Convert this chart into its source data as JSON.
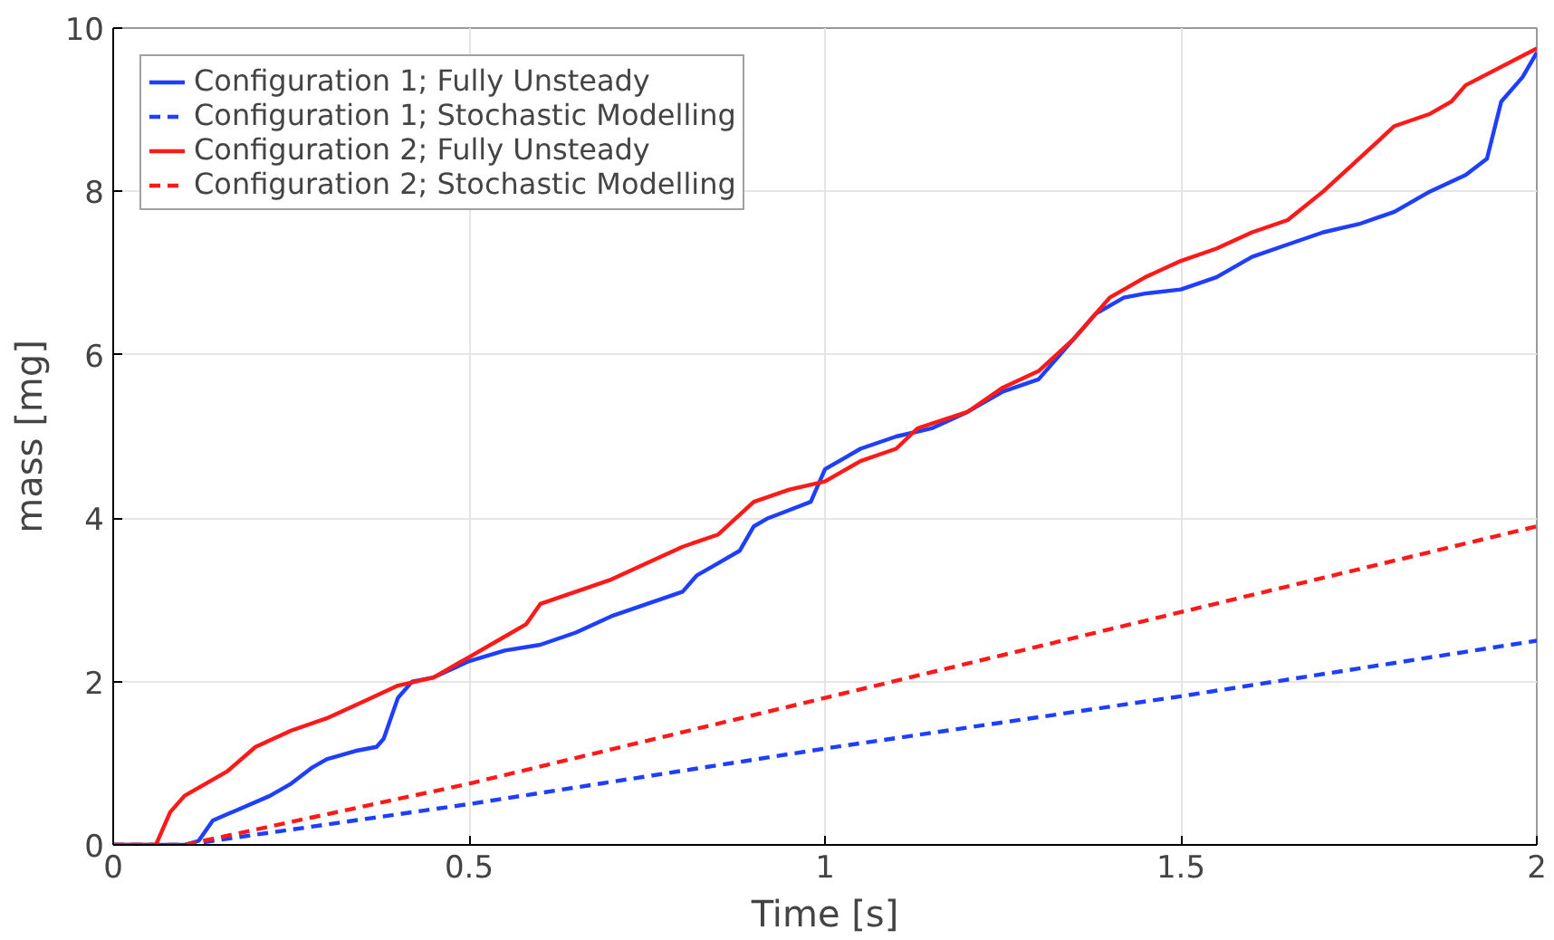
{
  "chart_data": {
    "type": "line",
    "xlabel": "Time [s]",
    "ylabel": "mass [mg]",
    "xlim": [
      0,
      2
    ],
    "ylim": [
      0,
      10
    ],
    "xticks": [
      0,
      0.5,
      1,
      1.5,
      2
    ],
    "yticks": [
      0,
      2,
      4,
      6,
      8,
      10
    ],
    "grid": true,
    "legend": "top left",
    "series": [
      {
        "name": "Configuration 1; Fully Unsteady",
        "color": "#1f3fff",
        "line_style": "solid",
        "x": [
          0,
          0.1,
          0.12,
          0.14,
          0.18,
          0.22,
          0.25,
          0.28,
          0.3,
          0.34,
          0.37,
          0.38,
          0.4,
          0.42,
          0.45,
          0.5,
          0.55,
          0.6,
          0.65,
          0.7,
          0.75,
          0.8,
          0.82,
          0.85,
          0.88,
          0.9,
          0.92,
          0.95,
          0.98,
          1.0,
          1.02,
          1.05,
          1.1,
          1.15,
          1.2,
          1.25,
          1.3,
          1.35,
          1.38,
          1.42,
          1.45,
          1.5,
          1.55,
          1.6,
          1.65,
          1.7,
          1.75,
          1.8,
          1.85,
          1.9,
          1.93,
          1.95,
          1.98,
          2.0
        ],
        "values": [
          0,
          0,
          0.05,
          0.3,
          0.45,
          0.6,
          0.75,
          0.95,
          1.05,
          1.15,
          1.2,
          1.3,
          1.8,
          2.0,
          2.05,
          2.25,
          2.38,
          2.45,
          2.6,
          2.8,
          2.95,
          3.1,
          3.3,
          3.45,
          3.6,
          3.9,
          4.0,
          4.1,
          4.2,
          4.6,
          4.7,
          4.85,
          5.0,
          5.1,
          5.3,
          5.55,
          5.7,
          6.2,
          6.5,
          6.7,
          6.75,
          6.8,
          6.95,
          7.2,
          7.35,
          7.5,
          7.6,
          7.75,
          8.0,
          8.2,
          8.4,
          9.1,
          9.4,
          9.7
        ]
      },
      {
        "name": "Configuration 1; Stochastic Modelling",
        "color": "#1f3fff",
        "line_style": "dashed",
        "x": [
          0,
          0.1,
          0.5,
          1,
          1.5,
          2
        ],
        "values": [
          0,
          0,
          0.5,
          1.18,
          1.82,
          2.5
        ]
      },
      {
        "name": "Configuration 2; Fully Unsteady",
        "color": "#ff1a1a",
        "line_style": "solid",
        "x": [
          0,
          0.06,
          0.08,
          0.1,
          0.13,
          0.16,
          0.2,
          0.25,
          0.3,
          0.35,
          0.4,
          0.45,
          0.5,
          0.55,
          0.58,
          0.6,
          0.65,
          0.7,
          0.75,
          0.8,
          0.85,
          0.9,
          0.95,
          1.0,
          1.05,
          1.1,
          1.13,
          1.2,
          1.25,
          1.3,
          1.35,
          1.4,
          1.45,
          1.5,
          1.55,
          1.6,
          1.65,
          1.7,
          1.75,
          1.8,
          1.85,
          1.88,
          1.9,
          2.0
        ],
        "values": [
          0,
          0,
          0.4,
          0.6,
          0.75,
          0.9,
          1.2,
          1.4,
          1.55,
          1.75,
          1.95,
          2.05,
          2.3,
          2.55,
          2.7,
          2.95,
          3.1,
          3.25,
          3.45,
          3.65,
          3.8,
          4.2,
          4.35,
          4.45,
          4.7,
          4.85,
          5.1,
          5.3,
          5.6,
          5.8,
          6.2,
          6.7,
          6.95,
          7.15,
          7.3,
          7.5,
          7.65,
          8.0,
          8.4,
          8.8,
          8.95,
          9.1,
          9.3,
          9.75
        ]
      },
      {
        "name": "Configuration 2; Stochastic Modelling",
        "color": "#ff1a1a",
        "line_style": "dashed",
        "x": [
          0,
          0.1,
          0.5,
          1,
          1.5,
          2
        ],
        "values": [
          0,
          0,
          0.75,
          1.8,
          2.85,
          3.9
        ]
      }
    ]
  }
}
